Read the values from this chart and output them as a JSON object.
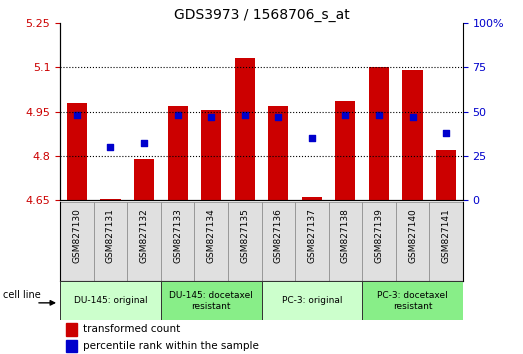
{
  "title": "GDS3973 / 1568706_s_at",
  "samples": [
    "GSM827130",
    "GSM827131",
    "GSM827132",
    "GSM827133",
    "GSM827134",
    "GSM827135",
    "GSM827136",
    "GSM827137",
    "GSM827138",
    "GSM827139",
    "GSM827140",
    "GSM827141"
  ],
  "transformed_counts": [
    4.98,
    4.655,
    4.79,
    4.97,
    4.955,
    5.13,
    4.97,
    4.66,
    4.985,
    5.1,
    5.09,
    4.82
  ],
  "percentile_ranks": [
    48,
    30,
    32,
    48,
    47,
    48,
    47,
    35,
    48,
    48,
    47,
    38
  ],
  "ylim_left": [
    4.65,
    5.25
  ],
  "ylim_right": [
    0,
    100
  ],
  "yticks_left": [
    4.65,
    4.8,
    4.95,
    5.1,
    5.25
  ],
  "yticks_right": [
    0,
    25,
    50,
    75,
    100
  ],
  "ytick_labels_left": [
    "4.65",
    "4.8",
    "4.95",
    "5.1",
    "5.25"
  ],
  "ytick_labels_right": [
    "0",
    "25",
    "50",
    "75",
    "100%"
  ],
  "bar_color": "#cc0000",
  "dot_color": "#0000cc",
  "bar_bottom": 4.65,
  "cell_line_groups": [
    {
      "label": "DU-145: original",
      "start": 0,
      "end": 3,
      "color": "#ccffcc"
    },
    {
      "label": "DU-145: docetaxel\nresistant",
      "start": 3,
      "end": 6,
      "color": "#88ee88"
    },
    {
      "label": "PC-3: original",
      "start": 6,
      "end": 9,
      "color": "#ccffcc"
    },
    {
      "label": "PC-3: docetaxel\nresistant",
      "start": 9,
      "end": 12,
      "color": "#88ee88"
    }
  ],
  "legend_bar_label": "transformed count",
  "legend_dot_label": "percentile rank within the sample",
  "cell_line_text": "cell line",
  "grid_color": "#000000",
  "background_color": "#ffffff",
  "xlabel_color_left": "#cc0000",
  "xlabel_color_right": "#0000cc",
  "xtick_bg_color": "#e0e0e0"
}
